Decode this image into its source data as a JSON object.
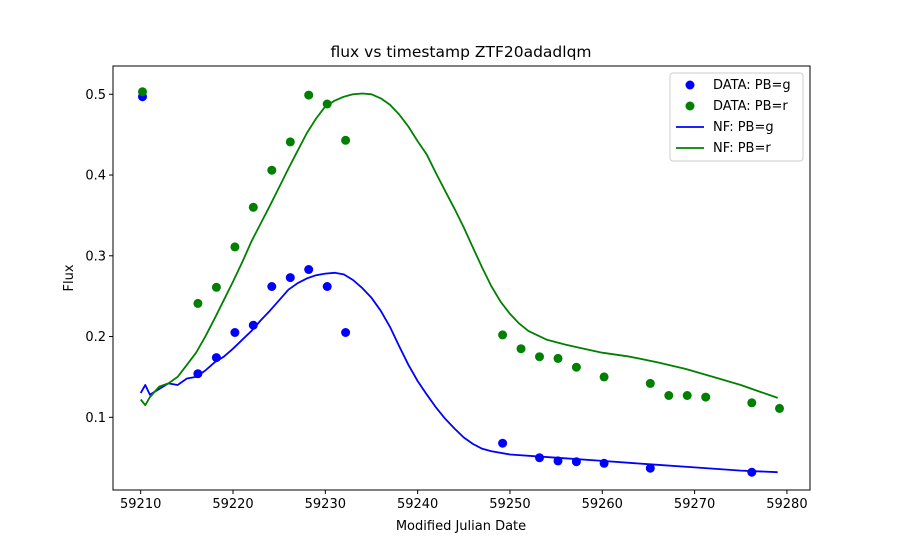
{
  "chart_data": {
    "type": "scatter",
    "title": "flux vs timestamp ZTF20adadlqm",
    "xlabel": "Modified Julian Date",
    "ylabel": "Flux",
    "xlim": [
      59207.0,
      59282.5
    ],
    "ylim": [
      0.01,
      0.535
    ],
    "xticks": [
      59210,
      59220,
      59230,
      59240,
      59250,
      59260,
      59270,
      59280
    ],
    "yticks": [
      0.1,
      0.2,
      0.3,
      0.4,
      0.5
    ],
    "grid": false,
    "legend_position": "top-right",
    "colors": {
      "g": "#0000ff",
      "r": "#008000"
    },
    "series": [
      {
        "name": "DATA: PB=g",
        "kind": "scatter",
        "color": "#0000ff",
        "points": [
          [
            59210.2,
            0.497
          ],
          [
            59216.2,
            0.154
          ],
          [
            59218.2,
            0.174
          ],
          [
            59220.2,
            0.205
          ],
          [
            59222.2,
            0.214
          ],
          [
            59224.2,
            0.262
          ],
          [
            59226.2,
            0.273
          ],
          [
            59228.2,
            0.283
          ],
          [
            59230.2,
            0.262
          ],
          [
            59232.2,
            0.205
          ],
          [
            59249.2,
            0.068
          ],
          [
            59253.2,
            0.05
          ],
          [
            59255.2,
            0.046
          ],
          [
            59257.2,
            0.045
          ],
          [
            59260.2,
            0.043
          ],
          [
            59265.2,
            0.037
          ],
          [
            59276.2,
            0.032
          ]
        ]
      },
      {
        "name": "DATA: PB=r",
        "kind": "scatter",
        "color": "#008000",
        "points": [
          [
            59210.2,
            0.503
          ],
          [
            59216.2,
            0.241
          ],
          [
            59218.2,
            0.261
          ],
          [
            59220.2,
            0.311
          ],
          [
            59222.2,
            0.36
          ],
          [
            59224.2,
            0.406
          ],
          [
            59226.2,
            0.441
          ],
          [
            59228.2,
            0.499
          ],
          [
            59230.2,
            0.488
          ],
          [
            59232.2,
            0.443
          ],
          [
            59249.2,
            0.202
          ],
          [
            59251.2,
            0.185
          ],
          [
            59253.2,
            0.175
          ],
          [
            59255.2,
            0.173
          ],
          [
            59257.2,
            0.162
          ],
          [
            59260.2,
            0.15
          ],
          [
            59265.2,
            0.142
          ],
          [
            59267.2,
            0.127
          ],
          [
            59269.2,
            0.127
          ],
          [
            59271.2,
            0.125
          ],
          [
            59276.2,
            0.118
          ],
          [
            59279.2,
            0.111
          ]
        ]
      },
      {
        "name": "NF: PB=g",
        "kind": "line",
        "color": "#0000ff",
        "points": [
          [
            59210.0,
            0.13
          ],
          [
            59210.5,
            0.14
          ],
          [
            59211.0,
            0.128
          ],
          [
            59212.0,
            0.135
          ],
          [
            59213.0,
            0.142
          ],
          [
            59214.0,
            0.14
          ],
          [
            59215.0,
            0.148
          ],
          [
            59216.0,
            0.15
          ],
          [
            59217.0,
            0.158
          ],
          [
            59218.0,
            0.168
          ],
          [
            59219.0,
            0.175
          ],
          [
            59220.0,
            0.185
          ],
          [
            59221.0,
            0.196
          ],
          [
            59222.0,
            0.207
          ],
          [
            59223.0,
            0.22
          ],
          [
            59224.0,
            0.232
          ],
          [
            59225.0,
            0.245
          ],
          [
            59226.0,
            0.258
          ],
          [
            59227.0,
            0.266
          ],
          [
            59228.0,
            0.272
          ],
          [
            59229.0,
            0.276
          ],
          [
            59230.0,
            0.278
          ],
          [
            59231.0,
            0.279
          ],
          [
            59232.0,
            0.277
          ],
          [
            59233.0,
            0.27
          ],
          [
            59234.0,
            0.26
          ],
          [
            59235.0,
            0.248
          ],
          [
            59236.0,
            0.232
          ],
          [
            59237.0,
            0.212
          ],
          [
            59238.0,
            0.188
          ],
          [
            59239.0,
            0.165
          ],
          [
            59240.0,
            0.145
          ],
          [
            59241.0,
            0.128
          ],
          [
            59242.0,
            0.112
          ],
          [
            59243.0,
            0.098
          ],
          [
            59244.0,
            0.086
          ],
          [
            59245.0,
            0.075
          ],
          [
            59246.0,
            0.067
          ],
          [
            59247.0,
            0.061
          ],
          [
            59248.0,
            0.058
          ],
          [
            59250.0,
            0.054
          ],
          [
            59255.0,
            0.05
          ],
          [
            59260.0,
            0.046
          ],
          [
            59265.0,
            0.042
          ],
          [
            59270.0,
            0.038
          ],
          [
            59275.0,
            0.034
          ],
          [
            59279.0,
            0.032
          ]
        ]
      },
      {
        "name": "NF: PB=r",
        "kind": "line",
        "color": "#008000",
        "points": [
          [
            59210.0,
            0.122
          ],
          [
            59210.5,
            0.115
          ],
          [
            59211.0,
            0.125
          ],
          [
            59212.0,
            0.138
          ],
          [
            59213.0,
            0.142
          ],
          [
            59214.0,
            0.15
          ],
          [
            59215.0,
            0.165
          ],
          [
            59216.0,
            0.18
          ],
          [
            59217.0,
            0.2
          ],
          [
            59218.0,
            0.222
          ],
          [
            59219.0,
            0.245
          ],
          [
            59220.0,
            0.268
          ],
          [
            59221.0,
            0.292
          ],
          [
            59222.0,
            0.318
          ],
          [
            59223.0,
            0.34
          ],
          [
            59224.0,
            0.362
          ],
          [
            59225.0,
            0.385
          ],
          [
            59226.0,
            0.408
          ],
          [
            59227.0,
            0.43
          ],
          [
            59228.0,
            0.452
          ],
          [
            59229.0,
            0.47
          ],
          [
            59230.0,
            0.485
          ],
          [
            59231.0,
            0.492
          ],
          [
            59232.0,
            0.497
          ],
          [
            59233.0,
            0.5
          ],
          [
            59234.0,
            0.501
          ],
          [
            59235.0,
            0.5
          ],
          [
            59236.0,
            0.495
          ],
          [
            59237.0,
            0.487
          ],
          [
            59238.0,
            0.475
          ],
          [
            59239.0,
            0.46
          ],
          [
            59240.0,
            0.442
          ],
          [
            59241.0,
            0.425
          ],
          [
            59242.0,
            0.402
          ],
          [
            59243.0,
            0.38
          ],
          [
            59244.0,
            0.358
          ],
          [
            59245.0,
            0.335
          ],
          [
            59246.0,
            0.31
          ],
          [
            59247.0,
            0.285
          ],
          [
            59248.0,
            0.262
          ],
          [
            59249.0,
            0.243
          ],
          [
            59250.0,
            0.228
          ],
          [
            59251.0,
            0.216
          ],
          [
            59252.0,
            0.207
          ],
          [
            59254.0,
            0.196
          ],
          [
            59256.0,
            0.19
          ],
          [
            59258.0,
            0.185
          ],
          [
            59260.0,
            0.18
          ],
          [
            59263.0,
            0.175
          ],
          [
            59266.0,
            0.168
          ],
          [
            59269.0,
            0.16
          ],
          [
            59272.0,
            0.15
          ],
          [
            59275.0,
            0.14
          ],
          [
            59277.0,
            0.132
          ],
          [
            59279.0,
            0.124
          ]
        ]
      }
    ]
  }
}
